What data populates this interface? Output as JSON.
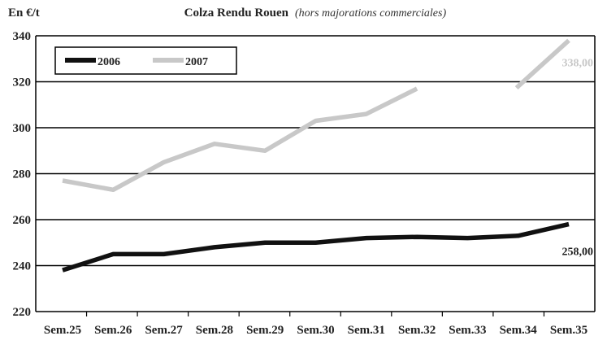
{
  "chart_data": {
    "type": "line",
    "title": "Colza Rendu Rouen",
    "subtitle": "(hors majorations commerciales)",
    "ylabel": "En €/t",
    "xlabel": "",
    "categories": [
      "Sem.25",
      "Sem.26",
      "Sem.27",
      "Sem.28",
      "Sem.29",
      "Sem.30",
      "Sem.31",
      "Sem.32",
      "Sem.33",
      "Sem.34",
      "Sem.35"
    ],
    "ylim": [
      220,
      340
    ],
    "yticks": [
      220,
      240,
      260,
      280,
      300,
      320,
      340
    ],
    "grid": true,
    "legend_position": "top-left",
    "series": [
      {
        "name": "2006",
        "color": "#111111",
        "values": [
          238,
          245,
          245,
          248,
          250,
          250,
          252,
          252.5,
          252,
          253,
          258
        ]
      },
      {
        "name": "2007",
        "color": "#c8c8c8",
        "values": [
          277,
          273,
          285,
          293,
          290,
          303,
          306,
          317,
          null,
          318,
          338
        ]
      }
    ],
    "annotations": [
      {
        "series": 0,
        "index": 10,
        "text": "258,00"
      },
      {
        "series": 1,
        "index": 10,
        "text": "338,00"
      }
    ]
  }
}
